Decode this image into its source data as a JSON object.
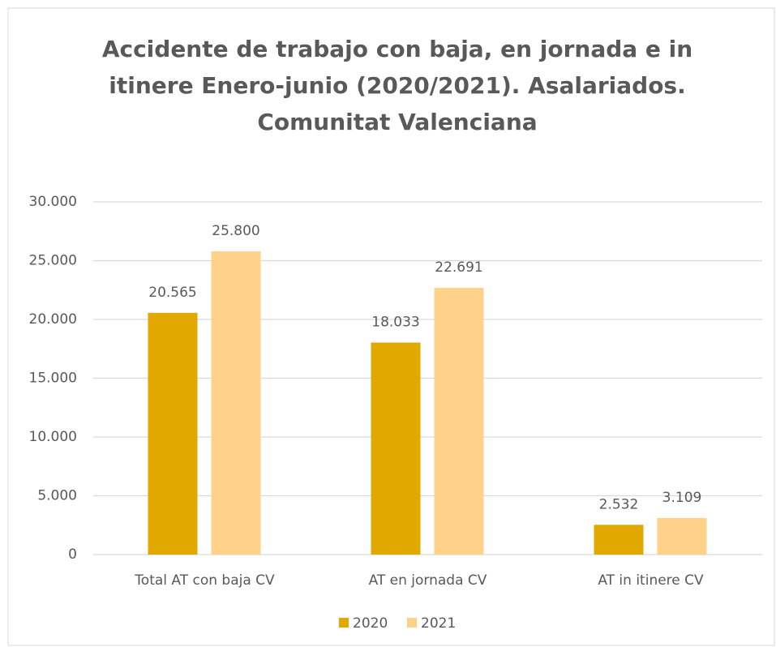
{
  "chart_data": {
    "type": "bar",
    "title": [
      "Accidente de trabajo con baja, en jornada e in",
      "itinere Enero-junio (2020/2021). Asalariados.",
      "Comunitat Valenciana"
    ],
    "categories": [
      "Total AT con baja CV",
      "AT en jornada CV",
      "AT in itinere CV"
    ],
    "series": [
      {
        "name": "2020",
        "color": "#e1a800",
        "values": [
          20565,
          18033,
          2532
        ],
        "value_labels": [
          "20.565",
          "18.033",
          "2.532"
        ]
      },
      {
        "name": "2021",
        "color": "#ffd28a",
        "values": [
          25800,
          22691,
          3109
        ],
        "value_labels": [
          "25.800",
          "22.691",
          "3.109"
        ]
      }
    ],
    "ylim": [
      0,
      30000
    ],
    "yticks": [
      0,
      {
        "value": 5000,
        "label": "5.000"
      },
      {
        "value": 10000,
        "label": "10.000"
      },
      {
        "value": 15000,
        "label": "15.000"
      },
      {
        "value": 20000,
        "label": "20.000"
      },
      {
        "value": 25000,
        "label": "25.000"
      },
      {
        "value": 30000,
        "label": "30.000"
      }
    ],
    "grid": true,
    "legend": "bottom"
  }
}
